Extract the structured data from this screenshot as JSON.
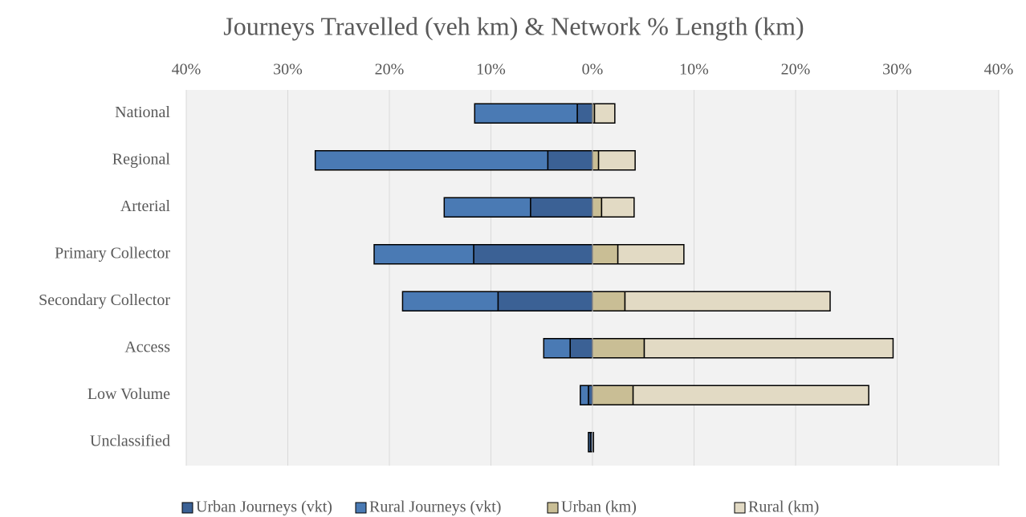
{
  "chart_data": {
    "type": "bar",
    "orientation": "horizontal",
    "stacked": true,
    "title": "Journeys Travelled (veh km) & Network % Length (km)",
    "categories": [
      "National",
      "Regional",
      "Arterial",
      "Primary Collector",
      "Secondary Collector",
      "Access",
      "Low Volume",
      "Unclassified"
    ],
    "series": [
      {
        "name": "Urban Journeys (vkt)",
        "color": "#3b6195",
        "values": [
          -1.5,
          -4.4,
          -6.1,
          -11.7,
          -9.3,
          -2.2,
          -0.4,
          -0.2
        ]
      },
      {
        "name": "Rural Journeys  (vkt)",
        "color": "#4a7ab4",
        "values": [
          -10.1,
          -22.9,
          -8.5,
          -9.8,
          -9.4,
          -2.6,
          -0.8,
          -0.2
        ]
      },
      {
        "name": "Urban (km)",
        "color": "#c9be95",
        "values": [
          0.2,
          0.6,
          0.9,
          2.5,
          3.2,
          5.1,
          4.0,
          0.1
        ]
      },
      {
        "name": "Rural (km)",
        "color": "#e2dac4",
        "values": [
          2.0,
          3.6,
          3.2,
          6.5,
          20.2,
          24.5,
          23.2,
          0.0
        ]
      }
    ],
    "xlim": [
      -40,
      40
    ],
    "xticks": [
      {
        "value": -40,
        "label": "40%"
      },
      {
        "value": -30,
        "label": "30%"
      },
      {
        "value": -20,
        "label": "20%"
      },
      {
        "value": -10,
        "label": "10%"
      },
      {
        "value": 0,
        "label": "0%"
      },
      {
        "value": 10,
        "label": "10%"
      },
      {
        "value": 20,
        "label": "20%"
      },
      {
        "value": 30,
        "label": "30%"
      },
      {
        "value": 40,
        "label": "40%"
      }
    ],
    "grid": true,
    "legend": "bottom"
  }
}
